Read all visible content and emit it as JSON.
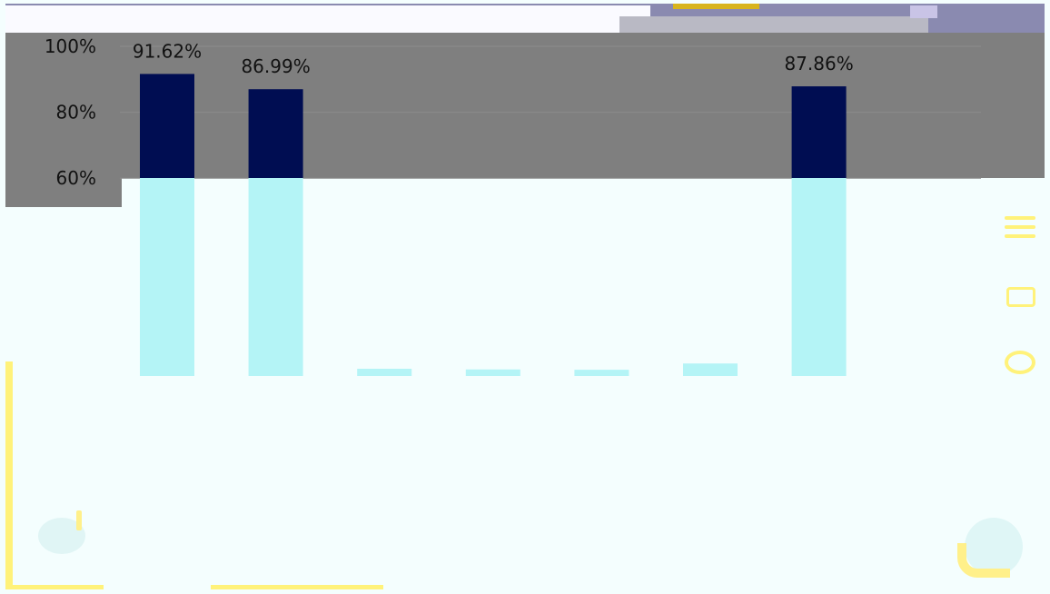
{
  "chart_data": {
    "type": "bar",
    "y_ticks": [
      "100%",
      "80%",
      "60%"
    ],
    "ylim": [
      0,
      100
    ],
    "grid": true,
    "series": [
      {
        "values": [
          91.62,
          86.99,
          2.2,
          2.0,
          1.9,
          3.8,
          87.86
        ],
        "labels": [
          "91.62%",
          "86.99%",
          "",
          "",
          "",
          "",
          "87.86%"
        ]
      }
    ]
  },
  "colors": {
    "bar_dark": "#000d52",
    "bar_light": "#b4f4f6",
    "plot_grey": "#7f7f7f",
    "accent_yellow": "#fff27a"
  },
  "icons": [
    "menu-icon",
    "mail-icon",
    "chat-icon",
    "phone-icon",
    "speech-bubble-icon"
  ]
}
